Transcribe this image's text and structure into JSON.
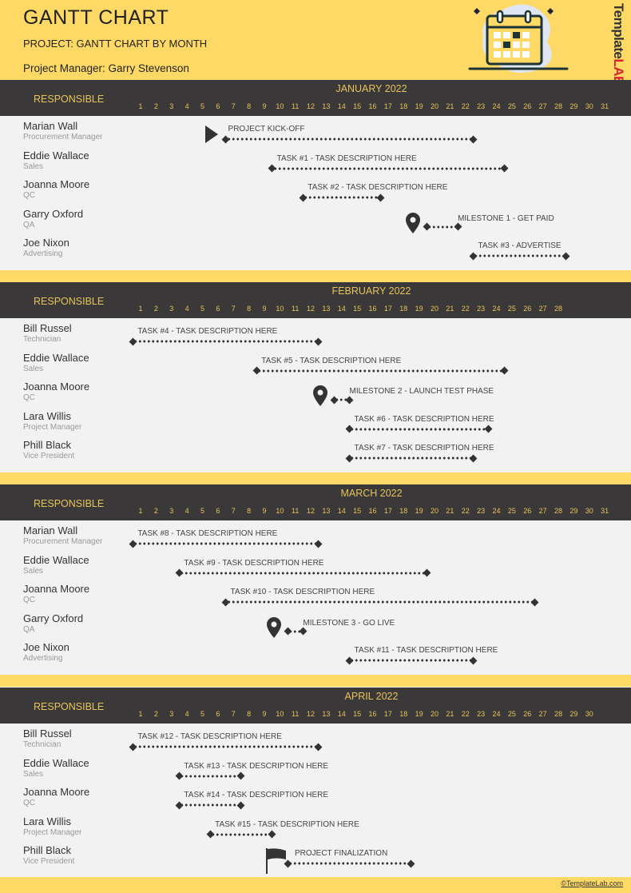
{
  "header": {
    "title": "GANTT CHART",
    "project": "PROJECT: GANTT CHART BY MONTH",
    "manager": "Project Manager: Garry Stevenson",
    "logo": "TemplateLAB"
  },
  "responsible_label": "RESPONSIBLE",
  "colors": {
    "accent": "#fed966",
    "header_bar": "#3a3838",
    "header_text": "#e7c45a",
    "bar": "#333333"
  },
  "months": [
    {
      "title": "JANUARY 2022",
      "days": 31,
      "rows": [
        {
          "name": "Marian Wall",
          "role": "Procurement Manager",
          "task": "PROJECT KICK-OFF",
          "start": 7,
          "end": 22,
          "marker": "play"
        },
        {
          "name": "Eddie Wallace",
          "role": "Sales",
          "task": "TASK #1 - TASK DESCRIPTION HERE",
          "start": 10,
          "end": 24
        },
        {
          "name": "Joanna Moore",
          "role": "QC",
          "task": "TASK #2 - TASK DESCRIPTION HERE",
          "start": 12,
          "end": 16
        },
        {
          "name": "Garry Oxford",
          "role": "QA",
          "task": "MILESTONE 1 - GET PAID",
          "start": 20,
          "end": 21,
          "marker": "pin"
        },
        {
          "name": "Joe Nixon",
          "role": "Advertising",
          "task": "TASK #3 - ADVERTISE",
          "start": 23,
          "end": 28
        }
      ]
    },
    {
      "title": "FEBRUARY 2022",
      "days": 28,
      "rows": [
        {
          "name": "Bill Russel",
          "role": "Technician",
          "task": "TASK #4 - TASK DESCRIPTION HERE",
          "start": 1,
          "end": 12
        },
        {
          "name": "Eddie Wallace",
          "role": "Sales",
          "task": "TASK #5 - TASK DESCRIPTION HERE",
          "start": 9,
          "end": 24
        },
        {
          "name": "Joanna Moore",
          "role": "QC",
          "task": "MILESTONE 2 - LAUNCH TEST PHASE",
          "start": 14,
          "end": 14,
          "marker": "pin"
        },
        {
          "name": "Lara Willis",
          "role": "Project Manager",
          "task": "TASK #6 - TASK DESCRIPTION HERE",
          "start": 15,
          "end": 23
        },
        {
          "name": "Phill Black",
          "role": "Vice President",
          "task": "TASK #7 - TASK DESCRIPTION HERE",
          "start": 15,
          "end": 22
        }
      ]
    },
    {
      "title": "MARCH 2022",
      "days": 31,
      "rows": [
        {
          "name": "Marian Wall",
          "role": "Procurement Manager",
          "task": "TASK #8 - TASK DESCRIPTION HERE",
          "start": 1,
          "end": 12
        },
        {
          "name": "Eddie Wallace",
          "role": "Sales",
          "task": "TASK #9 - TASK DESCRIPTION HERE",
          "start": 4,
          "end": 19
        },
        {
          "name": "Joanna Moore",
          "role": "QC",
          "task": "TASK #10 - TASK DESCRIPTION HERE",
          "start": 7,
          "end": 26
        },
        {
          "name": "Garry Oxford",
          "role": "QA",
          "task": "MILESTONE 3 - GO LIVE",
          "start": 11,
          "end": 11,
          "marker": "pin"
        },
        {
          "name": "Joe Nixon",
          "role": "Advertising",
          "task": "TASK #11 - TASK DESCRIPTION HERE",
          "start": 15,
          "end": 22
        }
      ]
    },
    {
      "title": "APRIL 2022",
      "days": 30,
      "rows": [
        {
          "name": "Bill Russel",
          "role": "Technician",
          "task": "TASK #12 - TASK DESCRIPTION HERE",
          "start": 1,
          "end": 12
        },
        {
          "name": "Eddie Wallace",
          "role": "Sales",
          "task": "TASK #13 - TASK DESCRIPTION HERE",
          "start": 4,
          "end": 7
        },
        {
          "name": "Joanna Moore",
          "role": "QC",
          "task": "TASK #14 - TASK DESCRIPTION HERE",
          "start": 4,
          "end": 7
        },
        {
          "name": "Lara Willis",
          "role": "Project Manager",
          "task": "TASK #15 - TASK DESCRIPTION HERE",
          "start": 6,
          "end": 9
        },
        {
          "name": "Phill Black",
          "role": "Vice President",
          "task": "PROJECT FINALIZATION",
          "start": 11,
          "end": 18,
          "marker": "flag"
        }
      ]
    }
  ],
  "footer": {
    "copyright": "©TemplateLab.com"
  }
}
